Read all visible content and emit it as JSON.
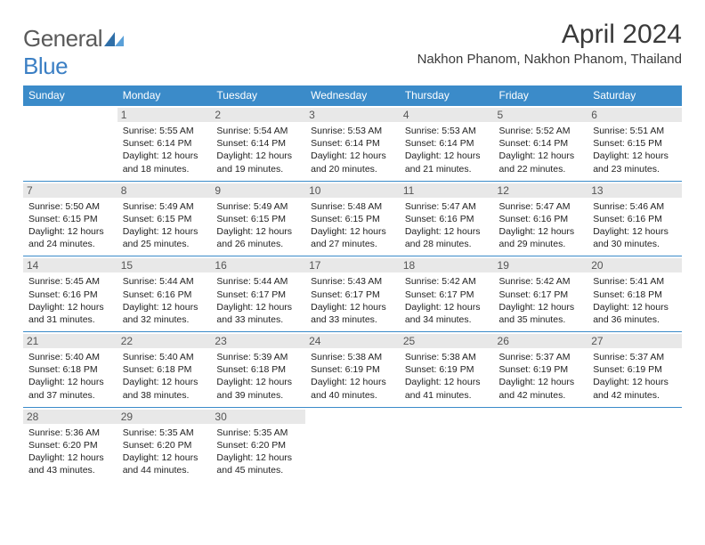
{
  "brand": {
    "part1": "General",
    "part2": "Blue"
  },
  "title": "April 2024",
  "location": "Nakhon Phanom, Nakhon Phanom, Thailand",
  "colors": {
    "header_bg": "#3b8bc9",
    "daynum_bg": "#e8e8e8",
    "text": "#222222",
    "border": "#3b8bc9"
  },
  "weekdays": [
    "Sunday",
    "Monday",
    "Tuesday",
    "Wednesday",
    "Thursday",
    "Friday",
    "Saturday"
  ],
  "weeks": [
    [
      null,
      {
        "n": "1",
        "sr": "Sunrise: 5:55 AM",
        "ss": "Sunset: 6:14 PM",
        "d1": "Daylight: 12 hours",
        "d2": "and 18 minutes."
      },
      {
        "n": "2",
        "sr": "Sunrise: 5:54 AM",
        "ss": "Sunset: 6:14 PM",
        "d1": "Daylight: 12 hours",
        "d2": "and 19 minutes."
      },
      {
        "n": "3",
        "sr": "Sunrise: 5:53 AM",
        "ss": "Sunset: 6:14 PM",
        "d1": "Daylight: 12 hours",
        "d2": "and 20 minutes."
      },
      {
        "n": "4",
        "sr": "Sunrise: 5:53 AM",
        "ss": "Sunset: 6:14 PM",
        "d1": "Daylight: 12 hours",
        "d2": "and 21 minutes."
      },
      {
        "n": "5",
        "sr": "Sunrise: 5:52 AM",
        "ss": "Sunset: 6:14 PM",
        "d1": "Daylight: 12 hours",
        "d2": "and 22 minutes."
      },
      {
        "n": "6",
        "sr": "Sunrise: 5:51 AM",
        "ss": "Sunset: 6:15 PM",
        "d1": "Daylight: 12 hours",
        "d2": "and 23 minutes."
      }
    ],
    [
      {
        "n": "7",
        "sr": "Sunrise: 5:50 AM",
        "ss": "Sunset: 6:15 PM",
        "d1": "Daylight: 12 hours",
        "d2": "and 24 minutes."
      },
      {
        "n": "8",
        "sr": "Sunrise: 5:49 AM",
        "ss": "Sunset: 6:15 PM",
        "d1": "Daylight: 12 hours",
        "d2": "and 25 minutes."
      },
      {
        "n": "9",
        "sr": "Sunrise: 5:49 AM",
        "ss": "Sunset: 6:15 PM",
        "d1": "Daylight: 12 hours",
        "d2": "and 26 minutes."
      },
      {
        "n": "10",
        "sr": "Sunrise: 5:48 AM",
        "ss": "Sunset: 6:15 PM",
        "d1": "Daylight: 12 hours",
        "d2": "and 27 minutes."
      },
      {
        "n": "11",
        "sr": "Sunrise: 5:47 AM",
        "ss": "Sunset: 6:16 PM",
        "d1": "Daylight: 12 hours",
        "d2": "and 28 minutes."
      },
      {
        "n": "12",
        "sr": "Sunrise: 5:47 AM",
        "ss": "Sunset: 6:16 PM",
        "d1": "Daylight: 12 hours",
        "d2": "and 29 minutes."
      },
      {
        "n": "13",
        "sr": "Sunrise: 5:46 AM",
        "ss": "Sunset: 6:16 PM",
        "d1": "Daylight: 12 hours",
        "d2": "and 30 minutes."
      }
    ],
    [
      {
        "n": "14",
        "sr": "Sunrise: 5:45 AM",
        "ss": "Sunset: 6:16 PM",
        "d1": "Daylight: 12 hours",
        "d2": "and 31 minutes."
      },
      {
        "n": "15",
        "sr": "Sunrise: 5:44 AM",
        "ss": "Sunset: 6:16 PM",
        "d1": "Daylight: 12 hours",
        "d2": "and 32 minutes."
      },
      {
        "n": "16",
        "sr": "Sunrise: 5:44 AM",
        "ss": "Sunset: 6:17 PM",
        "d1": "Daylight: 12 hours",
        "d2": "and 33 minutes."
      },
      {
        "n": "17",
        "sr": "Sunrise: 5:43 AM",
        "ss": "Sunset: 6:17 PM",
        "d1": "Daylight: 12 hours",
        "d2": "and 33 minutes."
      },
      {
        "n": "18",
        "sr": "Sunrise: 5:42 AM",
        "ss": "Sunset: 6:17 PM",
        "d1": "Daylight: 12 hours",
        "d2": "and 34 minutes."
      },
      {
        "n": "19",
        "sr": "Sunrise: 5:42 AM",
        "ss": "Sunset: 6:17 PM",
        "d1": "Daylight: 12 hours",
        "d2": "and 35 minutes."
      },
      {
        "n": "20",
        "sr": "Sunrise: 5:41 AM",
        "ss": "Sunset: 6:18 PM",
        "d1": "Daylight: 12 hours",
        "d2": "and 36 minutes."
      }
    ],
    [
      {
        "n": "21",
        "sr": "Sunrise: 5:40 AM",
        "ss": "Sunset: 6:18 PM",
        "d1": "Daylight: 12 hours",
        "d2": "and 37 minutes."
      },
      {
        "n": "22",
        "sr": "Sunrise: 5:40 AM",
        "ss": "Sunset: 6:18 PM",
        "d1": "Daylight: 12 hours",
        "d2": "and 38 minutes."
      },
      {
        "n": "23",
        "sr": "Sunrise: 5:39 AM",
        "ss": "Sunset: 6:18 PM",
        "d1": "Daylight: 12 hours",
        "d2": "and 39 minutes."
      },
      {
        "n": "24",
        "sr": "Sunrise: 5:38 AM",
        "ss": "Sunset: 6:19 PM",
        "d1": "Daylight: 12 hours",
        "d2": "and 40 minutes."
      },
      {
        "n": "25",
        "sr": "Sunrise: 5:38 AM",
        "ss": "Sunset: 6:19 PM",
        "d1": "Daylight: 12 hours",
        "d2": "and 41 minutes."
      },
      {
        "n": "26",
        "sr": "Sunrise: 5:37 AM",
        "ss": "Sunset: 6:19 PM",
        "d1": "Daylight: 12 hours",
        "d2": "and 42 minutes."
      },
      {
        "n": "27",
        "sr": "Sunrise: 5:37 AM",
        "ss": "Sunset: 6:19 PM",
        "d1": "Daylight: 12 hours",
        "d2": "and 42 minutes."
      }
    ],
    [
      {
        "n": "28",
        "sr": "Sunrise: 5:36 AM",
        "ss": "Sunset: 6:20 PM",
        "d1": "Daylight: 12 hours",
        "d2": "and 43 minutes."
      },
      {
        "n": "29",
        "sr": "Sunrise: 5:35 AM",
        "ss": "Sunset: 6:20 PM",
        "d1": "Daylight: 12 hours",
        "d2": "and 44 minutes."
      },
      {
        "n": "30",
        "sr": "Sunrise: 5:35 AM",
        "ss": "Sunset: 6:20 PM",
        "d1": "Daylight: 12 hours",
        "d2": "and 45 minutes."
      },
      null,
      null,
      null,
      null
    ]
  ]
}
